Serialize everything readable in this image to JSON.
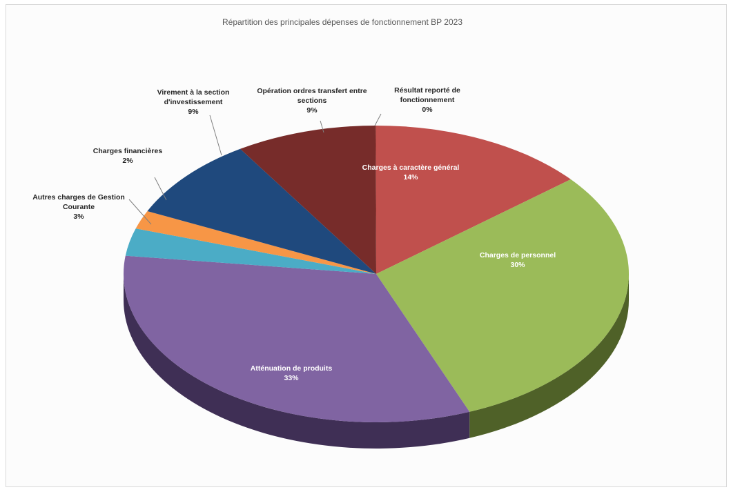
{
  "chart_data": {
    "type": "pie",
    "title": "Répartition des principales dépenses de fonctionnement BP 2023",
    "slices": [
      {
        "name": "Charges à caractère général",
        "label_lines": [
          "Charges à caractère général"
        ],
        "value_label": "14%",
        "value": 14,
        "color": "#c0504d",
        "side": "#7a2d2b",
        "label_inside": true
      },
      {
        "name": "Charges de personnel",
        "label_lines": [
          "Charges de personnel"
        ],
        "value_label": "30%",
        "value": 30,
        "color": "#9bbb59",
        "side": "#4f6128",
        "label_inside": true
      },
      {
        "name": "Atténuation de produits",
        "label_lines": [
          "Atténuation de produits"
        ],
        "value_label": "33%",
        "value": 33,
        "color": "#8064a2",
        "side": "#3f2f55",
        "label_inside": true
      },
      {
        "name": "Autres charges de Gestion Courante",
        "label_lines": [
          "Autres charges de Gestion",
          "Courante"
        ],
        "value_label": "3%",
        "value": 3,
        "color": "#4bacc6",
        "side": "#215968",
        "label_inside": false
      },
      {
        "name": "Charges financières",
        "label_lines": [
          "Charges financières"
        ],
        "value_label": "2%",
        "value": 2,
        "color": "#f79646",
        "side": "#984807",
        "label_inside": false
      },
      {
        "name": "Virement à la section d'investissement",
        "label_lines": [
          "Virement à la section",
          "d'investissement"
        ],
        "value_label": "9%",
        "value": 9,
        "color": "#1f497d",
        "side": "#0f243e",
        "label_inside": false
      },
      {
        "name": "Opération ordres transfert entre sections",
        "label_lines": [
          "Opération ordres transfert entre",
          "sections"
        ],
        "value_label": "9%",
        "value": 9,
        "color": "#772c2a",
        "side": "#3d1615",
        "label_inside": false
      },
      {
        "name": "Résultat reporté de fonctionnement",
        "label_lines": [
          "Résultat reporté de",
          "fonctionnement"
        ],
        "value_label": "0%",
        "value": 0.05,
        "color": "#9b3b38",
        "side": "#4d1d1c",
        "label_inside": false
      }
    ],
    "legend": "none",
    "style": "3d-exploded-none"
  }
}
